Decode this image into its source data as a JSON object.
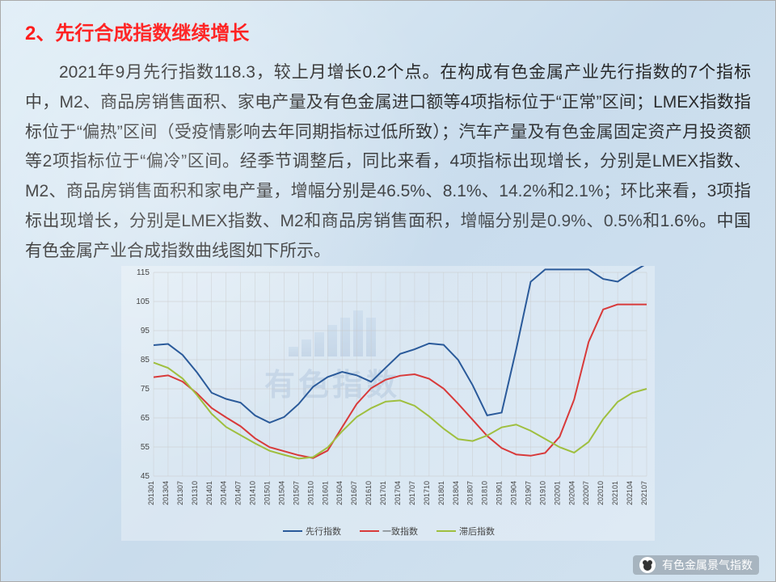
{
  "heading": "2、先行合成指数继续增长",
  "paragraph": "2021年9月先行指数118.3，较上月增长0.2个点。在构成有色金属产业先行指数的7个指标中，M2、商品房销售面积、家电产量及有色金属进口额等4项指标位于“正常”区间；LMEX指数指标位于“偏热”区间（受疫情影响去年同期指标过低所致）；汽车产量及有色金属固定资产月投资额等2项指标位于“偏冷”区间。经季节调整后，同比来看，4项指标出现增长，分别是LMEX指数、M2、商品房销售面积和家电产量，增幅分别是46.5%、8.1%、14.2%和2.1%；环比来看，3项指标出现增长，分别是LMEX指数、M2和商品房销售面积，增幅分别是0.9%、0.5%和1.6%。中国有色金属产业合成指数曲线图如下所示。",
  "chart": {
    "type": "line",
    "ylim": [
      45,
      115
    ],
    "ytick_step": 10,
    "grid_color": "#c8c8c8",
    "background": "transparent",
    "x_labels": [
      "201301",
      "201304",
      "201307",
      "201310",
      "201401",
      "201404",
      "201407",
      "201410",
      "201501",
      "201504",
      "201507",
      "201510",
      "201601",
      "201604",
      "201607",
      "201610",
      "201701",
      "201704",
      "201707",
      "201710",
      "201801",
      "201804",
      "201807",
      "201810",
      "201901",
      "201904",
      "201907",
      "201910",
      "202001",
      "202004",
      "202007",
      "202010",
      "202101",
      "202104",
      "202107"
    ],
    "series": [
      {
        "name": "先行指数",
        "color": "#2a5a9a",
        "width": 2,
        "values": [
          90,
          91,
          89,
          85,
          80,
          74,
          72,
          71,
          70,
          66,
          63,
          64,
          66,
          70,
          75,
          78,
          80,
          81,
          80,
          77,
          78,
          84,
          87,
          88,
          90,
          91,
          90,
          86,
          80,
          72,
          64,
          66,
          80,
          104,
          116,
          116,
          116,
          116,
          116,
          116,
          113,
          111,
          113,
          116,
          118
        ]
      },
      {
        "name": "一致指数",
        "color": "#d83a3a",
        "width": 2,
        "values": [
          79,
          80,
          79,
          77,
          74,
          70,
          67,
          65,
          63,
          60,
          57,
          55,
          54,
          53,
          52,
          51,
          52,
          55,
          62,
          68,
          73,
          76,
          78,
          79,
          80,
          80,
          79,
          77,
          74,
          70,
          66,
          62,
          58,
          55,
          53,
          52,
          52,
          52,
          55,
          60,
          70,
          85,
          98,
          103,
          104,
          104,
          104,
          104
        ]
      },
      {
        "name": "滞后指数",
        "color": "#9fbf3f",
        "width": 2,
        "values": [
          84,
          83,
          81,
          78,
          74,
          69,
          65,
          62,
          60,
          58,
          56,
          54,
          53,
          52,
          51,
          51,
          52,
          55,
          59,
          63,
          66,
          68,
          70,
          71,
          71,
          70,
          68,
          65,
          62,
          59,
          57,
          57,
          58,
          60,
          62,
          63,
          62,
          60,
          58,
          56,
          54,
          53,
          55,
          60,
          66,
          70,
          73,
          74,
          75
        ]
      }
    ],
    "legend": [
      "先行指数",
      "一致指数",
      "滞后指数"
    ]
  },
  "footer": {
    "label": "有色金属景气指数"
  },
  "watermark": {
    "label": "有色指数"
  }
}
